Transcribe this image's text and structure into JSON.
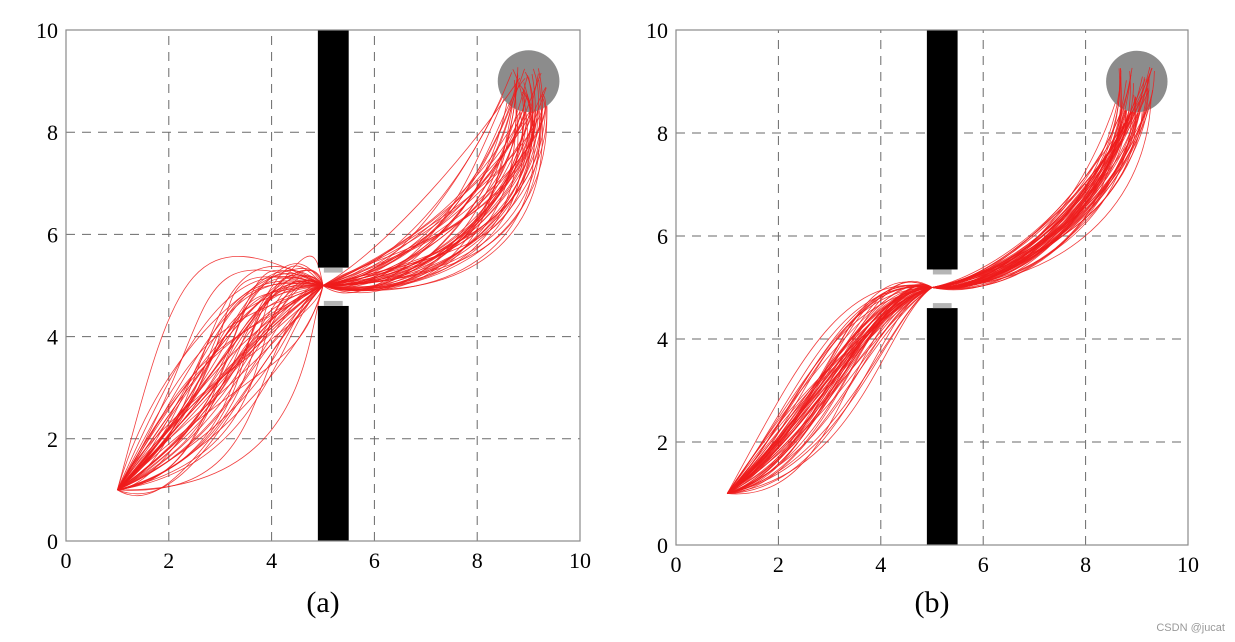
{
  "watermark": "CSDN @jucat",
  "chart_data": [
    {
      "type": "line",
      "panel_label": "(a)",
      "xlim": [
        0,
        10
      ],
      "ylim": [
        0,
        10
      ],
      "xticks": [
        0,
        2,
        4,
        6,
        8,
        10
      ],
      "yticks": [
        0,
        2,
        4,
        6,
        8,
        10
      ],
      "grid": true,
      "start": [
        1,
        1
      ],
      "gap_center": [
        5,
        5
      ],
      "goal": {
        "center": [
          9,
          9
        ],
        "radius": 0.6
      },
      "walls": [
        {
          "x0": 4.9,
          "x1": 5.5,
          "y0": 5.35,
          "y1": 10
        },
        {
          "x0": 4.9,
          "x1": 5.5,
          "y0": 0,
          "y1": 4.6
        }
      ],
      "trajectory_count": 60,
      "spread": 1.0
    },
    {
      "type": "line",
      "panel_label": "(b)",
      "xlim": [
        0,
        10
      ],
      "ylim": [
        0,
        10
      ],
      "xticks": [
        0,
        2,
        4,
        6,
        8,
        10
      ],
      "yticks": [
        0,
        2,
        4,
        6,
        8,
        10
      ],
      "grid": true,
      "start": [
        1,
        1
      ],
      "gap_center": [
        5,
        5
      ],
      "goal": {
        "center": [
          9,
          9
        ],
        "radius": 0.6
      },
      "walls": [
        {
          "x0": 4.9,
          "x1": 5.5,
          "y0": 5.35,
          "y1": 10
        },
        {
          "x0": 4.9,
          "x1": 5.5,
          "y0": 0,
          "y1": 4.6
        }
      ],
      "trajectory_count": 60,
      "spread": 0.45
    }
  ]
}
